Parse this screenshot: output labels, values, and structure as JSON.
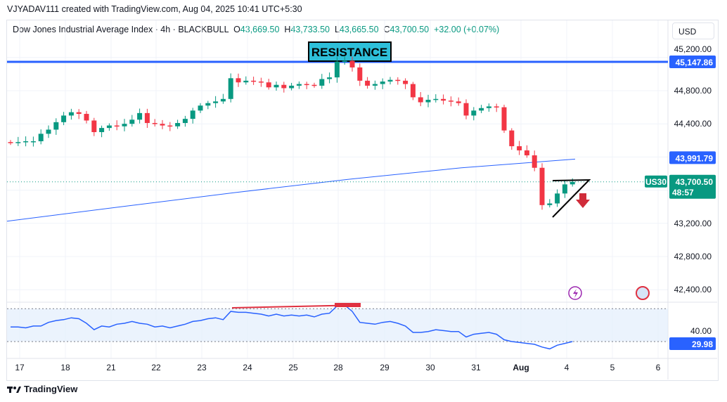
{
  "header": {
    "attribution": "VJYADAV111 created with TradingView.com, Aug 04, 2025 10:41 UTC+5:30"
  },
  "legend": {
    "symbol": "Dow Jones Industrial Average Index · 4h · BLACKBULL",
    "open": "43,669.50",
    "high": "43,733.50",
    "low": "43,665.50",
    "close": "43,700.50",
    "change": "+32.00 (+0.07%)"
  },
  "currency": "USD",
  "annotation": "RESISTANCE",
  "price_axis": {
    "ticks": [
      "45,200.00",
      "44,800.00",
      "44,400.00",
      "43,200.00",
      "42,800.00",
      "42,400.00"
    ],
    "resistance_label": "45,147.86",
    "ma_label": "43,991.79",
    "symbol_tag": "US30",
    "last_price": "43,700.50",
    "countdown": "48:57"
  },
  "rsi_axis": {
    "tick": "40.00",
    "value_label": "29.98"
  },
  "time_axis": [
    "17",
    "18",
    "21",
    "22",
    "23",
    "24",
    "25",
    "28",
    "29",
    "30",
    "31",
    "Aug",
    "4",
    "5",
    "6"
  ],
  "footer": {
    "brand": "TradingView"
  },
  "colors": {
    "up": "#089981",
    "down": "#f23645",
    "resistance": "#2962ff",
    "ma": "#2962ff",
    "rsi": "#2962ff"
  },
  "chart_data": {
    "type": "candlestick",
    "resistance": 45147.86,
    "closes": [
      44170,
      44180,
      44190,
      44190,
      44280,
      44330,
      44420,
      44500,
      44540,
      44520,
      44440,
      44300,
      44350,
      44380,
      44370,
      44400,
      44450,
      44530,
      44410,
      44400,
      44380,
      44370,
      44410,
      44460,
      44560,
      44620,
      44650,
      44670,
      44700,
      44950,
      44900,
      44920,
      44910,
      44900,
      44840,
      44870,
      44830,
      44860,
      44880,
      44870,
      44860,
      44940,
      44960,
      45150,
      45160,
      45080,
      44920,
      44860,
      44880,
      44910,
      44930,
      44920,
      44880,
      44720,
      44660,
      44690,
      44700,
      44680,
      44670,
      44650,
      44500,
      44560,
      44590,
      44610,
      44600,
      44320,
      44130,
      44080,
      44020,
      43870,
      43420,
      43440,
      43560,
      43670,
      43700
    ],
    "ma": [
      43226,
      43400,
      43570,
      43730,
      43870,
      43975
    ],
    "rsi": [
      46,
      46,
      45,
      47,
      47,
      51,
      53,
      54,
      56,
      55,
      50,
      43,
      47,
      46,
      49,
      50,
      52,
      50,
      49,
      46,
      47,
      45,
      47,
      49,
      52,
      53,
      55,
      56,
      54,
      63,
      62,
      62,
      61,
      60,
      58,
      60,
      58,
      59,
      58,
      59,
      57,
      60,
      61,
      69,
      70,
      63,
      51,
      50,
      49,
      51,
      52,
      50,
      47,
      40,
      40,
      41,
      43,
      42,
      41,
      41,
      35,
      38,
      39,
      40,
      38,
      32,
      30,
      29,
      28,
      27,
      24,
      22,
      26,
      28,
      29.98
    ],
    "ylim": [
      42300,
      45300
    ]
  }
}
